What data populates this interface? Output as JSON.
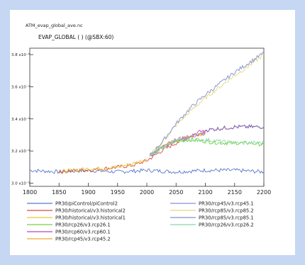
{
  "file_name": "ATM_evap_global_ave.nc",
  "chart_data": {
    "type": "line",
    "title": "EVAP_GLOBAL ( ) (@SBX:60)",
    "xlabel": "",
    "ylabel": "",
    "xlim": [
      1800,
      2200
    ],
    "ylim": [
      2.98e-05,
      3.84e-05
    ],
    "x_ticks": [
      "1800",
      "1850",
      "1900",
      "1950",
      "2000",
      "2050",
      "2100",
      "2150",
      "2200"
    ],
    "y_ticks": [
      {
        "value": 3e-05,
        "label": "3.0 x10⁻⁵"
      },
      {
        "value": 3.2e-05,
        "label": "3.2 x10⁻⁵"
      },
      {
        "value": 3.4e-05,
        "label": "3.4 x10⁻⁵"
      },
      {
        "value": 3.6e-05,
        "label": "3.6 x10⁻⁵"
      },
      {
        "value": 3.8e-05,
        "label": "3.8 x10⁻⁵"
      }
    ],
    "grid": false,
    "legend_position": "bottom",
    "series": [
      {
        "name": "PR30/piControl/piControl2",
        "color": "#5a78c8",
        "x": [
          1800,
          1850,
          1900,
          1950,
          2000,
          2050,
          2100,
          2150,
          2200
        ],
        "values": [
          3.08e-05,
          3.07e-05,
          3.08e-05,
          3.07e-05,
          3.08e-05,
          3.07e-05,
          3.08e-05,
          3.08e-05,
          3.07e-05
        ]
      },
      {
        "name": "PR30/historical/v3.historical2",
        "color": "#d84848",
        "x": [
          1850,
          1875,
          1900,
          1925,
          1950,
          1975,
          2000,
          2025,
          2050,
          2075,
          2100
        ],
        "values": [
          3.07e-05,
          3.08e-05,
          3.08e-05,
          3.09e-05,
          3.1e-05,
          3.11e-05,
          3.14e-05,
          3.2e-05,
          3.25e-05,
          3.29e-05,
          3.32e-05
        ]
      },
      {
        "name": "PR30/historical/v3.historical1",
        "color": "#e8c838",
        "x": [
          1850,
          1875,
          1900,
          1925,
          1950,
          1975,
          2000
        ],
        "values": [
          3.07e-05,
          3.08e-05,
          3.09e-05,
          3.09e-05,
          3.1e-05,
          3.12e-05,
          3.15e-05
        ]
      },
      {
        "name": "PR30/rcp26/v3.rcp26.1",
        "color": "#78d040",
        "x": [
          2005,
          2025,
          2050,
          2075,
          2100,
          2125,
          2150,
          2175,
          2200
        ],
        "values": [
          3.17e-05,
          3.22e-05,
          3.26e-05,
          3.27e-05,
          3.26e-05,
          3.25e-05,
          3.25e-05,
          3.25e-05,
          3.24e-05
        ]
      },
      {
        "name": "PR30/rcp60/v3.rcp60.1",
        "color": "#b848b8",
        "x": [
          2005,
          2025,
          2050,
          2075,
          2100
        ],
        "values": [
          3.17e-05,
          3.22e-05,
          3.27e-05,
          3.3e-05,
          3.33e-05
        ]
      },
      {
        "name": "PR30/rcp45/v3.rcp45.2",
        "color": "#f0a830",
        "x": [
          2005,
          2025,
          2050,
          2075,
          2100
        ],
        "values": [
          3.17e-05,
          3.22e-05,
          3.27e-05,
          3.29e-05,
          3.31e-05
        ]
      },
      {
        "name": "PR30/rcp45/v3.rcp45.1",
        "color": "#8890d8",
        "x": [
          2005,
          2025,
          2050,
          2075,
          2100
        ],
        "values": [
          3.17e-05,
          3.22e-05,
          3.27e-05,
          3.29e-05,
          3.31e-05
        ]
      },
      {
        "name": "PR30/rcp85/v3.rcp85.2",
        "color": "#e8d880",
        "x": [
          2005,
          2025,
          2050,
          2075,
          2100,
          2125,
          2150,
          2175,
          2200
        ],
        "values": [
          3.17e-05,
          3.25e-05,
          3.36e-05,
          3.45e-05,
          3.53e-05,
          3.6e-05,
          3.67e-05,
          3.73e-05,
          3.8e-05
        ]
      },
      {
        "name": "PR30/rcp85/v3.rcp85.1",
        "color": "#8090d0",
        "x": [
          2005,
          2025,
          2050,
          2075,
          2100,
          2125,
          2150,
          2175,
          2200
        ],
        "values": [
          3.17e-05,
          3.25e-05,
          3.37e-05,
          3.47e-05,
          3.55e-05,
          3.62e-05,
          3.69e-05,
          3.75e-05,
          3.81e-05
        ]
      },
      {
        "name": "PR30/rcp26/v3.rcp26.2",
        "color": "#88d8a8",
        "x": [
          2005,
          2025,
          2050,
          2075,
          2100,
          2125,
          2150,
          2175,
          2200
        ],
        "values": [
          3.17e-05,
          3.22e-05,
          3.26e-05,
          3.27e-05,
          3.27e-05,
          3.26e-05,
          3.25e-05,
          3.25e-05,
          3.25e-05
        ]
      }
    ],
    "purple_extension": {
      "color": "#8060a8",
      "x": [
        2100,
        2125,
        2150,
        2175,
        2200
      ],
      "values": [
        3.33e-05,
        3.34e-05,
        3.35e-05,
        3.35e-05,
        3.35e-05
      ]
    }
  }
}
